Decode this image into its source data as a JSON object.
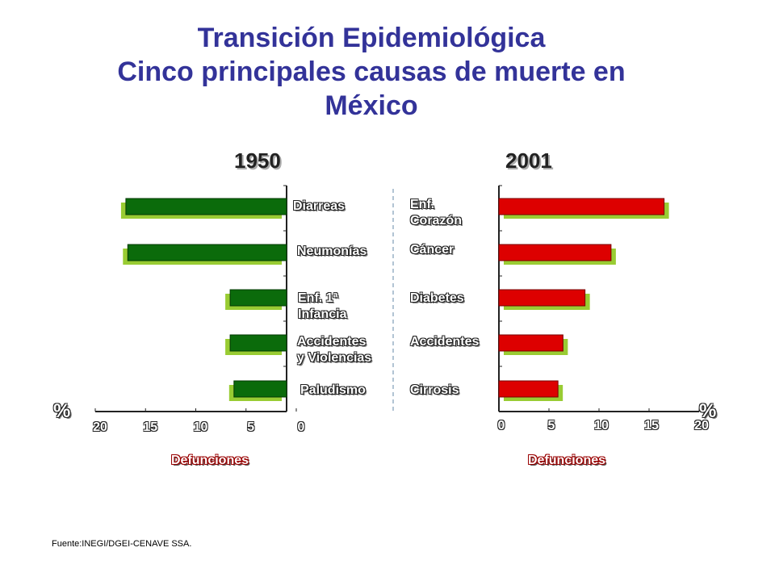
{
  "title_line1": "Transición Epidemiológica",
  "title_line2": "Cinco principales causas de muerte en",
  "title_line3": "México",
  "source": "Fuente:INEGI/DGEI-CENAVE  SSA.",
  "colors": {
    "title": "#333399",
    "green_bar": "#0b6b0b",
    "green_shadow": "#99cc33",
    "red_bar": "#dd0000",
    "red_shadow": "#99cc33",
    "axis_title": "#cc0000"
  },
  "chart_data": [
    {
      "type": "bar",
      "orientation": "horizontal",
      "direction": "right-to-left",
      "title": "1950",
      "categories": [
        "Diarreas",
        "Neumonías",
        "Enf. 1ª Infancia",
        "Accidentes y Violencias",
        "Paludismo"
      ],
      "category_lines": [
        [
          "Diarreas"
        ],
        [
          "Neumonías"
        ],
        [
          "Enf. 1ª",
          "Infancia"
        ],
        [
          "Accidentes",
          "y Violencias"
        ],
        [
          "Paludismo"
        ]
      ],
      "values": [
        16.8,
        16.6,
        5.9,
        5.9,
        5.5
      ],
      "xlabel": "Defunciones",
      "unit": "%",
      "xlim": [
        0,
        20
      ],
      "xticks": [
        "20",
        "15",
        "10",
        "5",
        "0"
      ]
    },
    {
      "type": "bar",
      "orientation": "horizontal",
      "direction": "left-to-right",
      "title": "2001",
      "categories": [
        "Enf. Corazón",
        "Cáncer",
        "Diabetes",
        "Accidentes",
        "Cirrosis"
      ],
      "category_lines": [
        [
          "Enf.",
          "Corazón"
        ],
        [
          "Cáncer"
        ],
        [
          "Diabetes"
        ],
        [
          "Accidentes"
        ],
        [
          "Cirrosis"
        ]
      ],
      "values": [
        16.5,
        11.2,
        8.6,
        6.4,
        5.9
      ],
      "xlabel": "Defunciones",
      "unit": "%",
      "xlim": [
        0,
        20
      ],
      "xticks": [
        "0",
        "5",
        "10",
        "15",
        "20"
      ]
    }
  ]
}
